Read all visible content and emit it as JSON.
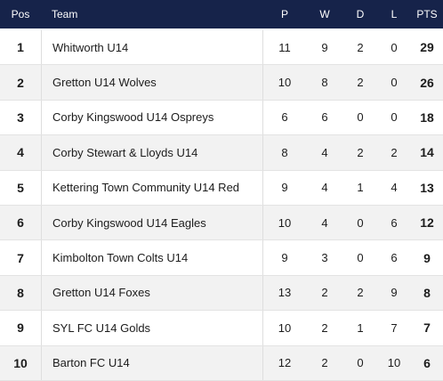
{
  "columns": {
    "pos": "Pos",
    "team": "Team",
    "p": "P",
    "w": "W",
    "d": "D",
    "l": "L",
    "pts": "PTS"
  },
  "rows": [
    {
      "pos": "1",
      "team": "Whitworth U14",
      "p": "11",
      "w": "9",
      "d": "2",
      "l": "0",
      "pts": "29"
    },
    {
      "pos": "2",
      "team": "Gretton U14 Wolves",
      "p": "10",
      "w": "8",
      "d": "2",
      "l": "0",
      "pts": "26"
    },
    {
      "pos": "3",
      "team": "Corby Kingswood U14 Ospreys",
      "p": "6",
      "w": "6",
      "d": "0",
      "l": "0",
      "pts": "18"
    },
    {
      "pos": "4",
      "team": "Corby Stewart & Lloyds U14",
      "p": "8",
      "w": "4",
      "d": "2",
      "l": "2",
      "pts": "14"
    },
    {
      "pos": "5",
      "team": "Kettering Town Community U14 Red",
      "p": "9",
      "w": "4",
      "d": "1",
      "l": "4",
      "pts": "13"
    },
    {
      "pos": "6",
      "team": "Corby Kingswood U14 Eagles",
      "p": "10",
      "w": "4",
      "d": "0",
      "l": "6",
      "pts": "12"
    },
    {
      "pos": "7",
      "team": "Kimbolton Town Colts U14",
      "p": "9",
      "w": "3",
      "d": "0",
      "l": "6",
      "pts": "9"
    },
    {
      "pos": "8",
      "team": "Gretton U14 Foxes",
      "p": "13",
      "w": "2",
      "d": "2",
      "l": "9",
      "pts": "8"
    },
    {
      "pos": "9",
      "team": "SYL FC U14 Golds",
      "p": "10",
      "w": "2",
      "d": "1",
      "l": "7",
      "pts": "7"
    },
    {
      "pos": "10",
      "team": "Barton FC U14",
      "p": "12",
      "w": "2",
      "d": "0",
      "l": "10",
      "pts": "6"
    }
  ]
}
